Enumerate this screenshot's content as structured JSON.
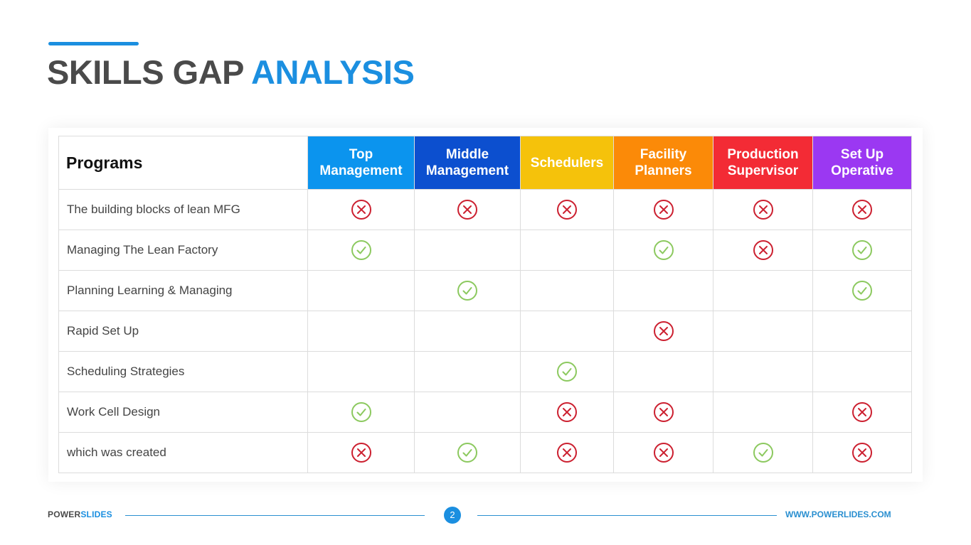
{
  "title": {
    "part1": "SKILLS GAP",
    "part2": "ANALYSIS"
  },
  "colors": {
    "accent": "#1b8fe0",
    "title_gray": "#4a4a4a",
    "check": "#8cc95f",
    "cross": "#cc2030"
  },
  "table": {
    "corner_header": "Programs",
    "columns": [
      {
        "line1": "Top",
        "line2": "Management",
        "color": "#0b94ee"
      },
      {
        "line1": "Middle",
        "line2": "Management",
        "color": "#0c4fcf"
      },
      {
        "line1": "Schedulers",
        "line2": "",
        "color": "#f5c20b"
      },
      {
        "line1": "Facility",
        "line2": "Planners",
        "color": "#fb8a08"
      },
      {
        "line1": "Production",
        "line2": "Supervisor",
        "color": "#f32b35"
      },
      {
        "line1": "Set Up",
        "line2": "Operative",
        "color": "#9b38f2"
      }
    ],
    "rows": [
      {
        "label": "The building blocks of lean MFG",
        "cells": [
          "cross",
          "cross",
          "cross",
          "cross",
          "cross",
          "cross"
        ]
      },
      {
        "label": "Managing The Lean Factory",
        "cells": [
          "check",
          "",
          "",
          "check",
          "cross",
          "check"
        ]
      },
      {
        "label": "Planning Learning & Managing",
        "cells": [
          "",
          "check",
          "",
          "",
          "",
          "check"
        ]
      },
      {
        "label": "Rapid Set Up",
        "cells": [
          "",
          "",
          "",
          "cross",
          "",
          ""
        ]
      },
      {
        "label": "Scheduling Strategies",
        "cells": [
          "",
          "",
          "check",
          "",
          "",
          ""
        ]
      },
      {
        "label": "Work Cell Design",
        "cells": [
          "check",
          "",
          "cross",
          "cross",
          "",
          "cross"
        ]
      },
      {
        "label": "which was created",
        "cells": [
          "cross",
          "check",
          "cross",
          "cross",
          "check",
          "cross"
        ]
      }
    ]
  },
  "footer": {
    "brand_part1": "POWER",
    "brand_part2": "SLIDES",
    "page_number": "2",
    "url": "WWW.POWERLIDES.COM"
  }
}
